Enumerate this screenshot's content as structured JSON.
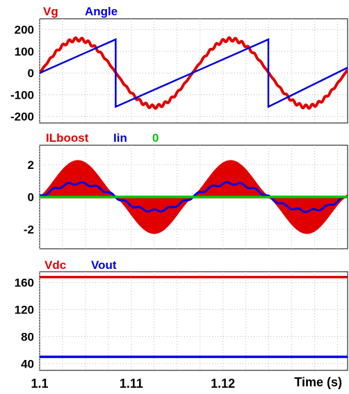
{
  "chart_data": [
    {
      "type": "line",
      "legend": [
        {
          "name": "Vg",
          "color": "#e00000"
        },
        {
          "name": "Angle",
          "color": "#0000e0"
        }
      ],
      "ylim": [
        -230,
        250
      ],
      "yticks": [
        "200",
        "100",
        "0",
        "-100",
        "-200"
      ],
      "ytick_values": [
        200,
        100,
        0,
        -100,
        -200
      ],
      "grid": true,
      "series": [
        {
          "name": "Vg",
          "color": "#e00000",
          "kind": "sine",
          "amplitude": 155,
          "period": 0.01667,
          "phase_zero": 1.1,
          "ripple": 8
        },
        {
          "name": "Angle",
          "color": "#0000e0",
          "kind": "sawtooth",
          "points": [
            [
              1.1,
              0
            ],
            [
              1.1083,
              155
            ],
            [
              1.1083,
              -155
            ],
            [
              1.12495,
              155
            ],
            [
              1.12495,
              -155
            ],
            [
              1.1336,
              25
            ]
          ]
        }
      ]
    },
    {
      "type": "line",
      "legend": [
        {
          "name": "ILboost",
          "color": "#e00000"
        },
        {
          "name": "Iin",
          "color": "#0000e0"
        },
        {
          "name": "0",
          "color": "#00c800"
        }
      ],
      "ylim": [
        -3.2,
        3.2
      ],
      "yticks": [
        "2",
        "0",
        "-2"
      ],
      "ytick_values": [
        2,
        0,
        -2
      ],
      "grid": true,
      "series": [
        {
          "name": "ILboost",
          "color": "#e00000",
          "kind": "ripple-envelope"
        },
        {
          "name": "Iin",
          "color": "#0000e0",
          "kind": "averaged"
        },
        {
          "name": "0",
          "color": "#00c800",
          "values": [
            [
              1.1,
              0
            ],
            [
              1.1336,
              0
            ]
          ]
        }
      ]
    },
    {
      "type": "line",
      "legend": [
        {
          "name": "Vdc",
          "color": "#e00000"
        },
        {
          "name": "Vout",
          "color": "#0000e0"
        }
      ],
      "ylim": [
        30,
        176
      ],
      "yticks": [
        "160",
        "120",
        "80",
        "40"
      ],
      "ytick_values": [
        160,
        120,
        80,
        40
      ],
      "grid": true,
      "series": [
        {
          "name": "Vdc",
          "color": "#e00000",
          "values": [
            [
              1.1,
              168
            ],
            [
              1.1336,
              168
            ]
          ]
        },
        {
          "name": "Vout",
          "color": "#0000e0",
          "values": [
            [
              1.1,
              50
            ],
            [
              1.1336,
              50
            ]
          ]
        }
      ]
    }
  ],
  "x_axis": {
    "xlim": [
      1.1,
      1.1336
    ],
    "ticks": [
      "1.1",
      "1.11",
      "1.12"
    ],
    "tick_values": [
      1.1,
      1.11,
      1.12
    ],
    "xlabel": "Time (s)"
  }
}
